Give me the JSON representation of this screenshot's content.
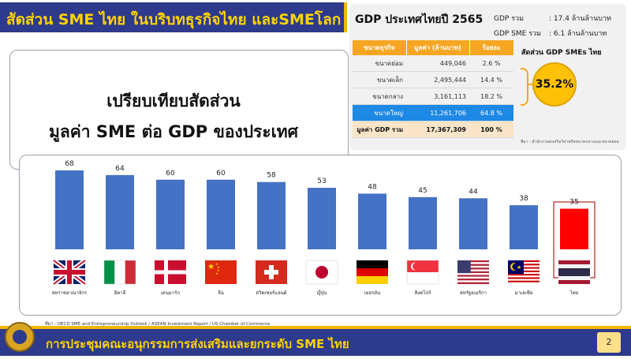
{
  "header": {
    "title": "สัดส่วน SME ไทย ในบริบทธุรกิจไทย และSMEโลก"
  },
  "compare": {
    "line1": "เปรียบเทียบสัดส่วน",
    "line2": "มูลค่า SME ต่อ GDP ของประเทศ"
  },
  "gdp_panel": {
    "title": "GDP ประเทศไทยปี 2565",
    "gdp_total_label": "GDP รวม",
    "gdp_total_value": ": 17.4 ล้านล้านบาท",
    "gdp_sme_label": "GDP SME รวม",
    "gdp_sme_value": ": 6.1 ล้านล้านบาท",
    "table_headers": [
      "ขนาดธุรกิจ",
      "มูลค่า (ล้านบาท)",
      "ร้อยละ"
    ],
    "table_rows": [
      [
        "ขนาดย่อม",
        "449,046",
        "2.6 %"
      ],
      [
        "ขนาดเล็ก",
        "2,495,444",
        "14.4 %"
      ],
      [
        "ขนาดกลาง",
        "3,161,113",
        "18.2 %"
      ],
      [
        "ขนาดใหญ่",
        "11,261,706",
        "64.8 %"
      ],
      [
        "มูลค่า GDP รวม",
        "17,367,309",
        "100 %"
      ]
    ],
    "share_label": "สัดส่วน GDP SMEs ไทย",
    "share_value": "35.2%",
    "note": "ที่มา : สำนักงานส่งเสริมวิสาหกิจขนาดกลางและขนาดย่อม"
  },
  "chart_data": {
    "type": "bar",
    "title": "",
    "xlabel": "",
    "ylabel": "",
    "categories": [
      "สหราชอาณาจักร",
      "อิตาลี",
      "เดนมาร์ก",
      "จีน",
      "สวิตเซอร์แลนด์",
      "ญี่ปุ่น",
      "เยอรมัน",
      "สิงคโปร์",
      "สหรัฐอเมริกา",
      "มาเลเซีย",
      "ไทย"
    ],
    "values": [
      68,
      64,
      60,
      60,
      58,
      53,
      48,
      45,
      44,
      38,
      35
    ],
    "flags": [
      "uk-flag-icon",
      "italy-flag-icon",
      "denmark-flag-icon",
      "china-flag-icon",
      "switzerland-flag-icon",
      "japan-flag-icon",
      "germany-flag-icon",
      "singapore-flag-icon",
      "usa-flag-icon",
      "malaysia-flag-icon",
      "thailand-flag-icon"
    ],
    "highlight_index": 10,
    "colors": {
      "bar": "#4472c4",
      "highlight": "#ff0000",
      "highlight_border": "#c0504d"
    },
    "ylim": [
      0,
      75
    ],
    "grid": false,
    "legend": "none"
  },
  "footer": {
    "source": "ที่มา : OECD SME and Entrepreneurship Outlook / ASEAN Investment Report / US Chamber of Commerce",
    "text": "การประชุมคณะอนุกรรมการส่งเสริมและยกระดับ SME ไทย",
    "page": "2"
  }
}
